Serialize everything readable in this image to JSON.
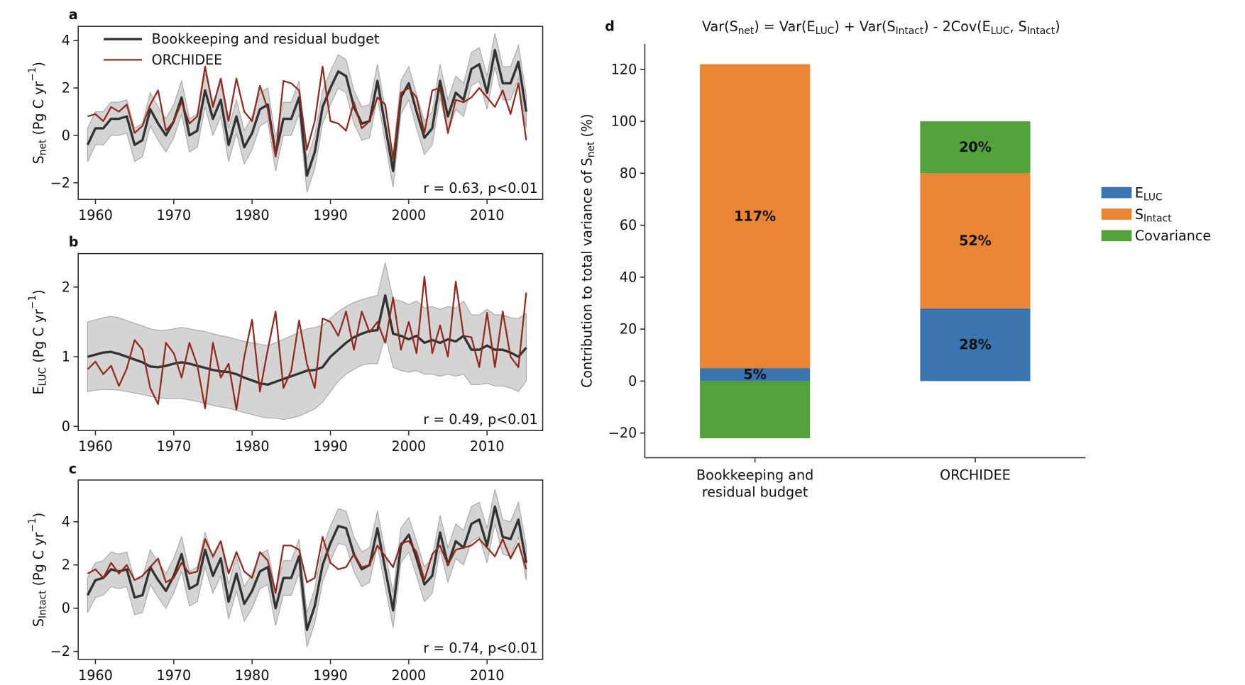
{
  "chart_data": [
    {
      "type": "line",
      "panel": "a",
      "legend": "upper left",
      "ylabel": [
        "S",
        {
          "sub": "net"
        },
        " (Pg C yr",
        {
          "sup": "−1"
        },
        ")"
      ],
      "annotation": "r = 0.63, p<0.01",
      "xlim": [
        1957.8,
        2017.1
      ],
      "ylim": [
        -2.7,
        4.6
      ],
      "xticks": [
        1960,
        1970,
        1980,
        1990,
        2000,
        2010
      ],
      "yticks": [
        {
          "value": -2,
          "label": "−2"
        },
        0,
        2,
        4
      ],
      "x": [
        1959,
        1960,
        1961,
        1962,
        1963,
        1964,
        1965,
        1966,
        1967,
        1968,
        1969,
        1970,
        1971,
        1972,
        1973,
        1974,
        1975,
        1976,
        1977,
        1978,
        1979,
        1980,
        1981,
        1982,
        1983,
        1984,
        1985,
        1986,
        1987,
        1988,
        1989,
        1990,
        1991,
        1992,
        1993,
        1994,
        1995,
        1996,
        1997,
        1998,
        1999,
        2000,
        2001,
        2002,
        2003,
        2004,
        2005,
        2006,
        2007,
        2008,
        2009,
        2010,
        2011,
        2012,
        2013,
        2014,
        2015
      ],
      "band": {
        "color": "#d4d4d4",
        "lower": [
          -1.1,
          -0.4,
          -0.4,
          0.0,
          0.0,
          0.1,
          -1.1,
          -0.9,
          0.4,
          -0.2,
          -0.7,
          -0.1,
          0.9,
          -0.7,
          -0.5,
          1.2,
          0.0,
          0.8,
          -1.1,
          0.1,
          -1.2,
          -0.6,
          0.4,
          0.6,
          -1.5,
          0.0,
          0.0,
          0.9,
          -2.4,
          -1.4,
          0.5,
          1.3,
          2.0,
          1.8,
          0.5,
          -0.2,
          -0.1,
          1.6,
          -0.3,
          -2.2,
          0.9,
          1.5,
          0.3,
          -0.8,
          -0.4,
          1.6,
          0.1,
          1.1,
          0.8,
          2.1,
          2.3,
          1.1,
          2.9,
          1.5,
          1.5,
          2.4,
          0.3
        ],
        "upper": [
          0.3,
          1.0,
          1.0,
          1.4,
          1.4,
          1.5,
          0.3,
          0.5,
          1.8,
          1.2,
          0.7,
          1.3,
          2.3,
          0.7,
          0.9,
          2.6,
          1.4,
          2.2,
          0.3,
          1.5,
          0.2,
          0.8,
          1.8,
          2.0,
          -0.1,
          1.4,
          1.4,
          2.3,
          -1.0,
          0.0,
          1.9,
          2.7,
          3.4,
          3.2,
          1.9,
          1.2,
          1.3,
          3.0,
          1.1,
          -0.8,
          2.3,
          2.9,
          1.7,
          0.6,
          1.0,
          3.0,
          1.5,
          2.5,
          2.2,
          3.5,
          3.7,
          2.5,
          4.3,
          2.9,
          2.9,
          3.8,
          1.7
        ]
      },
      "series": [
        {
          "name": "Bookkeeping and residual budget",
          "color": "#333333",
          "values": [
            -0.4,
            0.3,
            0.3,
            0.7,
            0.7,
            0.8,
            -0.4,
            -0.2,
            1.1,
            0.5,
            0.0,
            0.6,
            1.6,
            0.0,
            0.2,
            1.9,
            0.7,
            1.5,
            -0.4,
            0.8,
            -0.5,
            0.1,
            1.1,
            1.3,
            -0.8,
            0.7,
            0.7,
            1.6,
            -1.7,
            -0.7,
            1.2,
            2.0,
            2.7,
            2.5,
            1.2,
            0.5,
            0.6,
            2.3,
            0.4,
            -1.5,
            1.6,
            2.2,
            1.0,
            -0.1,
            0.3,
            2.3,
            0.8,
            1.8,
            1.5,
            2.8,
            3.0,
            1.8,
            3.6,
            2.2,
            2.2,
            3.1,
            1.0
          ]
        },
        {
          "name": "ORCHIDEE",
          "color": "#93291e",
          "values": [
            0.8,
            0.9,
            0.6,
            1.2,
            1.0,
            1.3,
            0.1,
            0.4,
            1.3,
            1.9,
            0.2,
            0.6,
            1.4,
            0.5,
            0.8,
            2.9,
            1.2,
            2.4,
            0.6,
            2.4,
            1.0,
            0.6,
            2.1,
            1.1,
            -0.9,
            2.3,
            2.2,
            1.9,
            -0.6,
            0.6,
            2.9,
            0.6,
            0.5,
            0.2,
            1.4,
            0.3,
            0.6,
            1.6,
            1.3,
            -1.0,
            1.8,
            2.0,
            1.6,
            0.1,
            1.9,
            2.0,
            0.1,
            1.5,
            1.4,
            1.6,
            2.0,
            1.6,
            1.2,
            1.9,
            0.9,
            2.2,
            -0.2
          ]
        }
      ]
    },
    {
      "type": "line",
      "panel": "b",
      "ylabel": [
        "E",
        {
          "sub": "LUC"
        },
        " (Pg C yr",
        {
          "sup": "−1"
        },
        ")"
      ],
      "annotation": "r = 0.49, p<0.01",
      "xlim": [
        1957.8,
        2017.1
      ],
      "ylim": [
        -0.06,
        2.48
      ],
      "xticks": [
        1960,
        1970,
        1980,
        1990,
        2000,
        2010
      ],
      "yticks": [
        0,
        1,
        2
      ],
      "x": [
        1959,
        1960,
        1961,
        1962,
        1963,
        1964,
        1965,
        1966,
        1967,
        1968,
        1969,
        1970,
        1971,
        1972,
        1973,
        1974,
        1975,
        1976,
        1977,
        1978,
        1979,
        1980,
        1981,
        1982,
        1983,
        1984,
        1985,
        1986,
        1987,
        1988,
        1989,
        1990,
        1991,
        1992,
        1993,
        1994,
        1995,
        1996,
        1997,
        1998,
        1999,
        2000,
        2001,
        2002,
        2003,
        2004,
        2005,
        2006,
        2007,
        2008,
        2009,
        2010,
        2011,
        2012,
        2013,
        2014,
        2015
      ],
      "band": {
        "color": "#d4d4d4",
        "lower": [
          0.5,
          0.52,
          0.53,
          0.53,
          0.52,
          0.5,
          0.48,
          0.46,
          0.43,
          0.41,
          0.4,
          0.4,
          0.4,
          0.38,
          0.36,
          0.33,
          0.3,
          0.28,
          0.26,
          0.23,
          0.2,
          0.17,
          0.14,
          0.12,
          0.12,
          0.1,
          0.12,
          0.15,
          0.2,
          0.25,
          0.35,
          0.5,
          0.65,
          0.75,
          0.82,
          0.88,
          0.9,
          0.9,
          1.3,
          0.85,
          0.8,
          0.78,
          0.8,
          0.75,
          0.75,
          0.72,
          0.75,
          0.72,
          0.75,
          0.6,
          0.6,
          0.62,
          0.58,
          0.58,
          0.55,
          0.5,
          0.65
        ],
        "upper": [
          1.5,
          1.53,
          1.56,
          1.58,
          1.56,
          1.52,
          1.48,
          1.44,
          1.4,
          1.38,
          1.38,
          1.4,
          1.42,
          1.4,
          1.38,
          1.36,
          1.33,
          1.3,
          1.28,
          1.25,
          1.22,
          1.2,
          1.18,
          1.16,
          1.2,
          1.25,
          1.3,
          1.35,
          1.4,
          1.42,
          1.45,
          1.55,
          1.65,
          1.72,
          1.78,
          1.82,
          1.85,
          1.88,
          2.35,
          1.82,
          1.8,
          1.75,
          1.8,
          1.7,
          1.72,
          1.68,
          1.72,
          1.7,
          1.8,
          1.6,
          1.6,
          1.68,
          1.6,
          1.6,
          1.56,
          1.55,
          1.62
        ]
      },
      "series": [
        {
          "color": "#333333",
          "values": [
            1.0,
            1.03,
            1.06,
            1.07,
            1.04,
            1.0,
            0.96,
            0.92,
            0.86,
            0.85,
            0.87,
            0.9,
            0.92,
            0.9,
            0.87,
            0.84,
            0.81,
            0.79,
            0.78,
            0.75,
            0.7,
            0.66,
            0.62,
            0.6,
            0.64,
            0.68,
            0.72,
            0.76,
            0.8,
            0.81,
            0.85,
            1.0,
            1.1,
            1.2,
            1.28,
            1.33,
            1.37,
            1.38,
            1.88,
            1.33,
            1.3,
            1.25,
            1.3,
            1.2,
            1.24,
            1.2,
            1.25,
            1.22,
            1.3,
            1.1,
            1.1,
            1.16,
            1.1,
            1.1,
            1.06,
            1.0,
            1.13
          ]
        },
        {
          "color": "#93291e",
          "values": [
            0.82,
            0.93,
            0.75,
            0.87,
            0.58,
            0.83,
            1.24,
            1.1,
            0.55,
            0.32,
            1.2,
            1.05,
            0.7,
            1.2,
            0.88,
            0.26,
            1.2,
            0.7,
            0.9,
            0.24,
            1.0,
            1.53,
            0.5,
            1.1,
            1.65,
            0.55,
            0.8,
            1.52,
            0.9,
            0.55,
            1.55,
            1.5,
            1.3,
            1.65,
            1.1,
            1.65,
            1.35,
            1.5,
            1.2,
            1.85,
            1.1,
            1.5,
            1.05,
            2.15,
            1.05,
            1.45,
            1.0,
            2.08,
            1.3,
            1.28,
            0.85,
            1.63,
            0.85,
            1.65,
            1.0,
            0.85,
            1.92
          ]
        }
      ]
    },
    {
      "type": "line",
      "panel": "c",
      "ylabel": [
        "S",
        {
          "sub": "Intact"
        },
        " (Pg C yr",
        {
          "sup": "−1"
        },
        ")"
      ],
      "annotation": "r = 0.74, p<0.01",
      "xlim": [
        1957.8,
        2017.1
      ],
      "ylim": [
        -2.37,
        5.93
      ],
      "xticks": [
        1960,
        1970,
        1980,
        1990,
        2000,
        2010
      ],
      "yticks": [
        {
          "value": -2,
          "label": "−2"
        },
        0,
        2,
        4
      ],
      "x": [
        1959,
        1960,
        1961,
        1962,
        1963,
        1964,
        1965,
        1966,
        1967,
        1968,
        1969,
        1970,
        1971,
        1972,
        1973,
        1974,
        1975,
        1976,
        1977,
        1978,
        1979,
        1980,
        1981,
        1982,
        1983,
        1984,
        1985,
        1986,
        1987,
        1988,
        1989,
        1990,
        1991,
        1992,
        1993,
        1994,
        1995,
        1996,
        1997,
        1998,
        1999,
        2000,
        2001,
        2002,
        2003,
        2004,
        2005,
        2006,
        2007,
        2008,
        2009,
        2010,
        2011,
        2012,
        2013,
        2014,
        2015
      ],
      "band": {
        "color": "#d4d4d4",
        "lower": [
          -0.2,
          0.5,
          0.6,
          1.0,
          0.9,
          1.0,
          -0.3,
          -0.2,
          1.1,
          0.5,
          0.0,
          0.7,
          1.7,
          0.1,
          0.3,
          1.9,
          0.7,
          1.5,
          -0.5,
          0.8,
          -0.6,
          0.0,
          0.9,
          1.1,
          -0.8,
          0.6,
          0.6,
          1.6,
          -1.8,
          -0.7,
          1.2,
          2.2,
          3.0,
          2.9,
          1.7,
          1.0,
          1.2,
          2.9,
          1.0,
          -0.9,
          2.1,
          2.6,
          1.5,
          0.3,
          0.7,
          2.7,
          1.2,
          2.3,
          2.0,
          3.1,
          3.3,
          2.1,
          3.9,
          2.5,
          2.4,
          3.3,
          1.3
        ],
        "upper": [
          1.4,
          2.1,
          2.2,
          2.6,
          2.5,
          2.6,
          1.3,
          1.4,
          2.7,
          2.1,
          1.6,
          2.3,
          3.3,
          1.7,
          1.9,
          3.5,
          2.3,
          3.1,
          1.1,
          2.4,
          1.0,
          1.6,
          2.5,
          2.7,
          0.8,
          2.2,
          2.2,
          3.2,
          -0.2,
          0.9,
          2.8,
          3.8,
          4.6,
          4.5,
          3.3,
          2.6,
          2.8,
          4.5,
          2.6,
          0.7,
          3.7,
          4.2,
          3.1,
          1.9,
          2.3,
          4.3,
          2.8,
          3.9,
          3.6,
          4.7,
          4.9,
          3.7,
          5.5,
          4.1,
          4.0,
          4.9,
          2.9
        ]
      },
      "series": [
        {
          "color": "#333333",
          "values": [
            0.6,
            1.3,
            1.4,
            1.8,
            1.7,
            1.8,
            0.5,
            0.6,
            1.9,
            1.3,
            0.8,
            1.5,
            2.5,
            0.9,
            1.1,
            2.7,
            1.5,
            2.3,
            0.3,
            1.6,
            0.2,
            0.8,
            1.7,
            1.9,
            0.0,
            1.4,
            1.4,
            2.4,
            -1.0,
            0.1,
            2.0,
            3.0,
            3.8,
            3.7,
            2.5,
            1.8,
            2.0,
            3.7,
            1.8,
            -0.1,
            2.9,
            3.4,
            2.3,
            1.1,
            1.5,
            3.5,
            2.0,
            3.1,
            2.8,
            3.9,
            4.1,
            2.9,
            4.7,
            3.3,
            3.2,
            4.1,
            2.1
          ]
        },
        {
          "color": "#93291e",
          "values": [
            1.6,
            1.8,
            1.4,
            2.1,
            1.6,
            2.0,
            1.3,
            1.5,
            1.9,
            2.3,
            1.2,
            1.4,
            2.1,
            1.6,
            1.7,
            3.2,
            2.4,
            3.1,
            1.6,
            2.6,
            1.7,
            1.4,
            2.6,
            2.2,
            0.7,
            2.9,
            2.9,
            2.7,
            1.2,
            1.4,
            3.3,
            2.1,
            1.8,
            1.9,
            2.5,
            1.9,
            2.0,
            2.9,
            2.4,
            1.9,
            3.0,
            3.1,
            2.6,
            1.3,
            2.5,
            2.9,
            2.0,
            2.7,
            2.8,
            2.9,
            3.2,
            2.8,
            2.4,
            3.2,
            2.3,
            3.0,
            1.8
          ]
        }
      ]
    },
    {
      "type": "bar",
      "panel": "d",
      "stacked": true,
      "legend": "center right",
      "title": [
        "Var(S",
        {
          "sub": "net"
        },
        ") = Var(E",
        {
          "sub": "LUC"
        },
        ") + Var(S",
        {
          "sub": "Intact"
        },
        ") - 2Cov(E",
        {
          "sub": "LUC"
        },
        ", S",
        {
          "sub": "Intact"
        },
        ")"
      ],
      "ylabel": [
        "Contribution to total variance of S",
        {
          "sub": "net"
        },
        " (%)"
      ],
      "categories": [
        [
          "Bookkeeping and",
          "residual budget"
        ],
        [
          "ORCHIDEE"
        ]
      ],
      "ylim": [
        -29.5,
        129.8
      ],
      "yticks": [
        {
          "value": -20,
          "label": "−20"
        },
        0,
        20,
        40,
        60,
        80,
        100,
        120
      ],
      "series": [
        {
          "name": [
            "E",
            {
              "sub": "LUC"
            }
          ],
          "color": "#3a75b0",
          "values": [
            5,
            28
          ],
          "value_labels": [
            "5%",
            "28%"
          ]
        },
        {
          "name": [
            "S",
            {
              "sub": "Intact"
            }
          ],
          "color": "#ea8533",
          "values": [
            117,
            52
          ],
          "value_labels": [
            "117%",
            "52%"
          ]
        },
        {
          "name": "Covariance",
          "color": "#53a23c",
          "values": [
            -22,
            20
          ],
          "value_labels": [
            null,
            "20%"
          ]
        }
      ]
    }
  ]
}
